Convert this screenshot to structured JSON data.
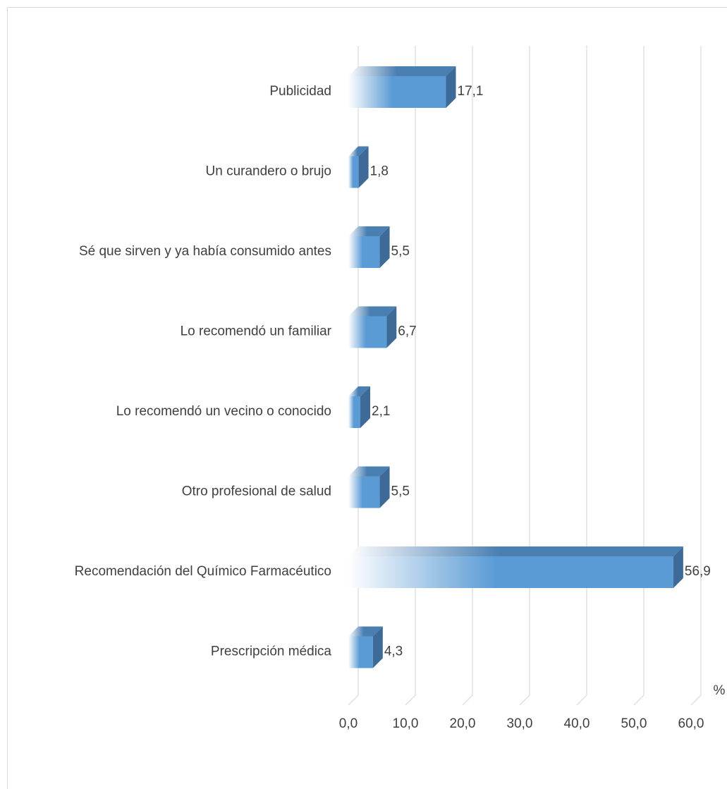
{
  "chart_data": {
    "type": "bar3d_horizontal",
    "categories": [
      "Publicidad",
      "Un curandero o brujo",
      "Sé que sirven y ya había consumido antes",
      "Lo recomendó un familiar",
      "Lo recomendó un vecino o conocido",
      "Otro profesional de salud",
      "Recomendación del Químico Farmacéutico",
      "Prescripción médica"
    ],
    "values": [
      17.1,
      1.8,
      5.5,
      6.7,
      2.1,
      5.5,
      56.9,
      4.3
    ],
    "value_labels": [
      "17,1",
      "1,8",
      "5,5",
      "6,7",
      "2,1",
      "5,5",
      "56,9",
      "4,3"
    ],
    "color": "#5b9bd5",
    "xlabel": "%",
    "xlim": [
      0,
      60
    ],
    "xticks": [
      {
        "value": 0,
        "label": "0,0"
      },
      {
        "value": 10,
        "label": "10,0"
      },
      {
        "value": 20,
        "label": "20,0"
      },
      {
        "value": 30,
        "label": "30,0"
      },
      {
        "value": 40,
        "label": "40,0"
      },
      {
        "value": 50,
        "label": "50,0"
      },
      {
        "value": 60,
        "label": "60,0"
      }
    ],
    "grid": true
  }
}
